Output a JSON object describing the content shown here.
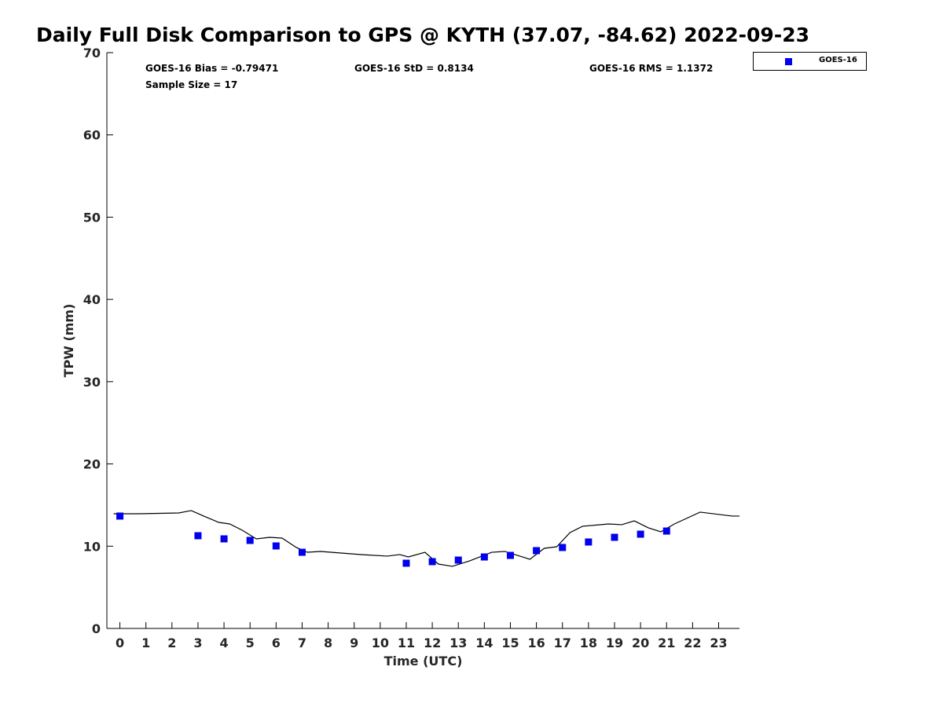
{
  "chart_data": {
    "type": "scatter",
    "title": "Daily Full Disk Comparison to GPS @ KYTH (37.07, -84.62) 2022-09-23",
    "xlabel": "Time (UTC)",
    "ylabel": "TPW (mm)",
    "xlim": [
      -0.5,
      23.8
    ],
    "ylim": [
      0,
      70
    ],
    "xticks": [
      0,
      1,
      2,
      3,
      4,
      5,
      6,
      7,
      8,
      9,
      10,
      11,
      12,
      13,
      14,
      15,
      16,
      17,
      18,
      19,
      20,
      21,
      22,
      23
    ],
    "yticks": [
      0,
      10,
      20,
      30,
      40,
      50,
      60,
      70
    ],
    "legend_position": "top-right outside",
    "stats": {
      "bias": "GOES-16 Bias = -0.79471",
      "std": "GOES-16 StD = 0.8134",
      "rms": "GOES-16 RMS = 1.1372",
      "n": "Sample Size = 17"
    },
    "series": [
      {
        "name": "GOES-16",
        "kind": "marker",
        "color": "#0000ee",
        "x": [
          0,
          3,
          4,
          5,
          6,
          7,
          11,
          12,
          13,
          14,
          15,
          16,
          17,
          18,
          19,
          20,
          21
        ],
        "y": [
          13.66,
          11.27,
          10.89,
          10.7,
          10.03,
          9.26,
          7.93,
          8.12,
          8.31,
          8.69,
          8.88,
          9.46,
          9.84,
          10.51,
          11.08,
          11.46,
          11.84
        ]
      },
      {
        "name": "GPS",
        "kind": "line",
        "color": "#000000",
        "x": [
          -0.24,
          0.72,
          2.26,
          2.74,
          3.16,
          3.8,
          4.22,
          4.7,
          5.24,
          5.75,
          6.23,
          6.78,
          7.2,
          7.71,
          9.28,
          10.27,
          10.75,
          11.08,
          11.72,
          12.23,
          12.77,
          13.43,
          14.28,
          14.79,
          15.75,
          16.3,
          16.78,
          17.29,
          17.77,
          18.77,
          19.28,
          19.76,
          20.3,
          20.78,
          21.3,
          22.29,
          23.52,
          23.8
        ],
        "y": [
          13.94,
          13.94,
          14.04,
          14.33,
          13.75,
          12.89,
          12.7,
          11.94,
          10.89,
          11.08,
          10.98,
          9.84,
          9.26,
          9.36,
          8.98,
          8.79,
          8.98,
          8.69,
          9.26,
          7.83,
          7.55,
          8.21,
          9.26,
          9.36,
          8.41,
          9.74,
          9.93,
          11.65,
          12.42,
          12.7,
          12.61,
          13.08,
          12.23,
          11.75,
          12.7,
          14.14,
          13.66,
          13.66
        ]
      }
    ]
  }
}
